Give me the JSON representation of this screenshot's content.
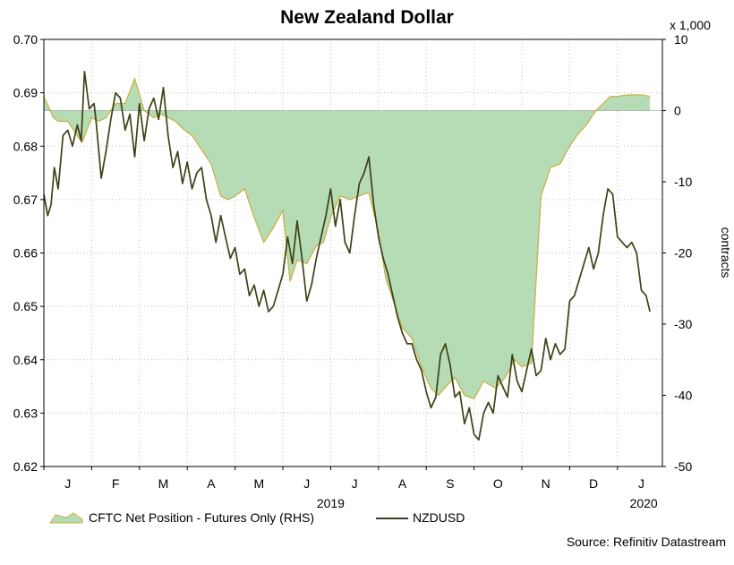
{
  "chart_data": {
    "type": "line",
    "title": "New Zealand Dollar",
    "source": "Source: Refinitiv Datastream",
    "left_axis": {
      "min": 0.62,
      "max": 0.7,
      "ticks": [
        "0.70",
        "0.69",
        "0.68",
        "0.67",
        "0.66",
        "0.65",
        "0.64",
        "0.63",
        "0.62"
      ]
    },
    "right_axis": {
      "min": -50,
      "max": 10,
      "ticks": [
        "10",
        "0",
        "-10",
        "-20",
        "-30",
        "-40",
        "-50"
      ],
      "unit_label": "x 1,000",
      "label": "contracts"
    },
    "x_axis": {
      "month_labels": [
        "J",
        "F",
        "M",
        "A",
        "M",
        "J",
        "J",
        "A",
        "S",
        "O",
        "N",
        "D",
        "J"
      ],
      "year_labels": [
        "2019",
        "2020"
      ],
      "start": "2019-01",
      "end": "2020-01"
    },
    "series": [
      {
        "name": "CFTC Net Position - Futures Only (RHS)",
        "axis": "right",
        "style": "area",
        "color": "#b6dcb6",
        "edge_color": "#c8b24a",
        "x": [
          0,
          0.2,
          0.3,
          0.5,
          0.65,
          0.8,
          1.0,
          1.15,
          1.3,
          1.5,
          1.7,
          1.9,
          2.1,
          2.3,
          2.45,
          2.6,
          2.75,
          2.9,
          3.1,
          3.3,
          3.5,
          3.7,
          3.85,
          4.0,
          4.2,
          4.4,
          4.6,
          4.8,
          5.0,
          5.15,
          5.3,
          5.5,
          5.7,
          5.85,
          6.0,
          6.2,
          6.4,
          6.6,
          6.8,
          7.0,
          7.15,
          7.3,
          7.5,
          7.7,
          7.9,
          8.1,
          8.25,
          8.45,
          8.6,
          8.8,
          9.0,
          9.2,
          9.45,
          9.65,
          9.85,
          10.0,
          10.2,
          10.4,
          10.6,
          10.8,
          11.0,
          11.15,
          11.35,
          11.55,
          11.7,
          11.85,
          12.0,
          12.2,
          12.5,
          12.68
        ],
        "values": [
          2.0,
          -1.0,
          -1.5,
          -1.5,
          -3.0,
          -4.5,
          -1.0,
          -1.5,
          -1.0,
          1.0,
          1.0,
          4.5,
          0.0,
          -1.0,
          -0.5,
          -1.0,
          -1.5,
          -2.5,
          -3.5,
          -5.5,
          -7.5,
          -12.0,
          -12.5,
          -12.0,
          -11.0,
          -15.0,
          -18.5,
          -16.5,
          -14.0,
          -24.0,
          -21.0,
          -21.5,
          -19.0,
          -18.5,
          -15.0,
          -12.0,
          -12.5,
          -12.0,
          -11.5,
          -17.0,
          -23.5,
          -26.5,
          -30.5,
          -32.0,
          -36.0,
          -39.0,
          -40.0,
          -38.5,
          -37.5,
          -40.0,
          -40.5,
          -38.0,
          -39.0,
          -37.5,
          -35.0,
          -36.0,
          -35.5,
          -12.0,
          -8.0,
          -7.5,
          -5.0,
          -3.5,
          -2.0,
          0.0,
          1.0,
          2.0,
          2.0,
          2.2,
          2.2,
          2.0
        ]
      },
      {
        "name": "NZDUSD",
        "axis": "left",
        "style": "line",
        "color": "#3f4116",
        "x": [
          0,
          0.08,
          0.15,
          0.22,
          0.3,
          0.4,
          0.5,
          0.6,
          0.7,
          0.78,
          0.85,
          0.95,
          1.05,
          1.1,
          1.2,
          1.3,
          1.4,
          1.5,
          1.6,
          1.7,
          1.8,
          1.9,
          2.0,
          2.1,
          2.2,
          2.3,
          2.4,
          2.5,
          2.6,
          2.7,
          2.8,
          2.9,
          3.0,
          3.1,
          3.2,
          3.3,
          3.4,
          3.5,
          3.6,
          3.7,
          3.8,
          3.9,
          4.0,
          4.1,
          4.2,
          4.3,
          4.4,
          4.5,
          4.6,
          4.7,
          4.8,
          4.9,
          5.0,
          5.1,
          5.2,
          5.3,
          5.4,
          5.5,
          5.6,
          5.7,
          5.8,
          5.9,
          6.0,
          6.1,
          6.2,
          6.3,
          6.4,
          6.5,
          6.6,
          6.7,
          6.8,
          6.9,
          7.0,
          7.1,
          7.2,
          7.3,
          7.4,
          7.5,
          7.6,
          7.7,
          7.8,
          7.9,
          8.0,
          8.1,
          8.2,
          8.3,
          8.4,
          8.5,
          8.6,
          8.7,
          8.8,
          8.9,
          9.0,
          9.1,
          9.2,
          9.3,
          9.4,
          9.5,
          9.6,
          9.7,
          9.8,
          9.9,
          10.0,
          10.1,
          10.2,
          10.3,
          10.4,
          10.5,
          10.6,
          10.7,
          10.8,
          10.9,
          11.0,
          11.1,
          11.2,
          11.3,
          11.4,
          11.5,
          11.6,
          11.7,
          11.8,
          11.9,
          12.0,
          12.1,
          12.2,
          12.3,
          12.4,
          12.5,
          12.6,
          12.68
        ],
        "values": [
          0.671,
          0.667,
          0.669,
          0.676,
          0.672,
          0.682,
          0.683,
          0.68,
          0.684,
          0.681,
          0.694,
          0.687,
          0.688,
          0.684,
          0.674,
          0.679,
          0.685,
          0.69,
          0.689,
          0.683,
          0.686,
          0.678,
          0.688,
          0.681,
          0.687,
          0.689,
          0.685,
          0.691,
          0.682,
          0.676,
          0.679,
          0.673,
          0.677,
          0.672,
          0.675,
          0.676,
          0.67,
          0.667,
          0.662,
          0.667,
          0.663,
          0.659,
          0.661,
          0.656,
          0.657,
          0.652,
          0.654,
          0.65,
          0.653,
          0.649,
          0.65,
          0.653,
          0.656,
          0.663,
          0.658,
          0.666,
          0.659,
          0.651,
          0.654,
          0.659,
          0.663,
          0.667,
          0.672,
          0.665,
          0.67,
          0.662,
          0.66,
          0.667,
          0.673,
          0.675,
          0.678,
          0.669,
          0.663,
          0.659,
          0.656,
          0.652,
          0.648,
          0.645,
          0.643,
          0.643,
          0.64,
          0.638,
          0.634,
          0.631,
          0.633,
          0.641,
          0.643,
          0.639,
          0.633,
          0.634,
          0.628,
          0.631,
          0.626,
          0.625,
          0.63,
          0.632,
          0.63,
          0.637,
          0.635,
          0.633,
          0.641,
          0.636,
          0.634,
          0.638,
          0.642,
          0.637,
          0.638,
          0.644,
          0.64,
          0.643,
          0.641,
          0.642,
          0.651,
          0.652,
          0.655,
          0.658,
          0.661,
          0.657,
          0.66,
          0.667,
          0.672,
          0.671,
          0.663,
          0.662,
          0.661,
          0.662,
          0.66,
          0.653,
          0.652,
          0.649
        ]
      }
    ]
  }
}
